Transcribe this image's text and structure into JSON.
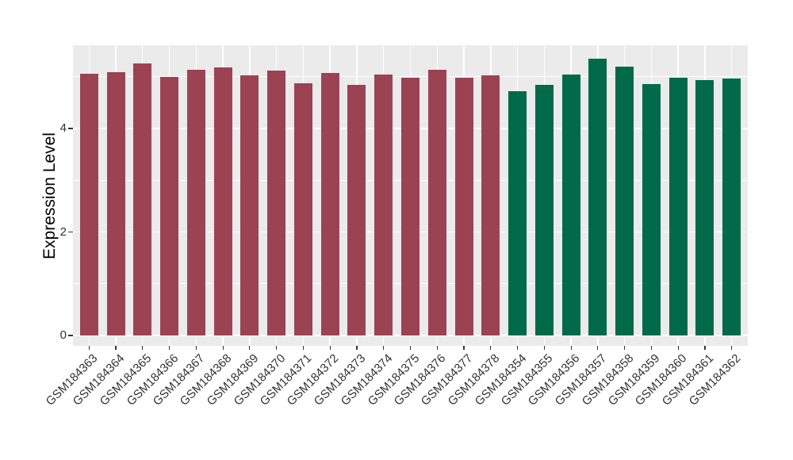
{
  "chart_data": {
    "type": "bar",
    "title": "",
    "xlabel": "",
    "ylabel": "Expression Level",
    "categories": [
      "GSM184363",
      "GSM184364",
      "GSM184365",
      "GSM184366",
      "GSM184367",
      "GSM184368",
      "GSM184369",
      "GSM184370",
      "GSM184371",
      "GSM184372",
      "GSM184373",
      "GSM184374",
      "GSM184375",
      "GSM184376",
      "GSM184377",
      "GSM184378",
      "GSM184354",
      "GSM184355",
      "GSM184356",
      "GSM184357",
      "GSM184358",
      "GSM184359",
      "GSM184360",
      "GSM184361",
      "GSM184362"
    ],
    "values": [
      5.06,
      5.09,
      5.25,
      5.0,
      5.14,
      5.18,
      5.03,
      5.12,
      4.88,
      5.07,
      4.85,
      5.04,
      4.98,
      5.14,
      4.98,
      5.02,
      4.72,
      4.84,
      5.04,
      5.35,
      5.19,
      4.86,
      4.98,
      4.93,
      4.97
    ],
    "bar_color_groups": [
      {
        "color": "#9C4353",
        "start_index": 0,
        "count": 16
      },
      {
        "color": "#016A49",
        "start_index": 16,
        "count": 9
      }
    ],
    "yticks": [
      0,
      2,
      4
    ],
    "yticks_minor": [
      1,
      3,
      5
    ],
    "ylim": [
      -0.2,
      5.61
    ],
    "grid": "on",
    "legend": "none",
    "styles": {
      "figure_background": "#FFFFFF",
      "plot_background": "#EBEBEB",
      "gridline_color": "#FFFFFF",
      "tick_mark_color": "#333333",
      "tick_label_color": "#333333",
      "axis_title_color": "#000000"
    }
  }
}
